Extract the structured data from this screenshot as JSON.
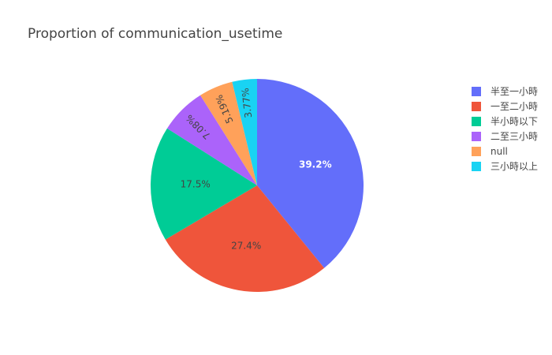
{
  "chart_data": {
    "type": "pie",
    "title": "Proportion of communication_usetime",
    "labels": [
      "半至一小時",
      "一至二小時",
      "半小時以下",
      "二至三小時",
      "null",
      "三小時以上"
    ],
    "percent_labels": [
      "39.2%",
      "27.4%",
      "17.5%",
      "7.08%",
      "5.19%",
      "3.77%"
    ],
    "values": [
      39.2,
      27.4,
      17.5,
      7.08,
      5.19,
      3.77
    ],
    "colors": [
      "#636efa",
      "#EF553B",
      "#00cc96",
      "#ab63fa",
      "#FFA15A",
      "#19d3f3"
    ],
    "label_colors": [
      "#ffffff",
      "#444444",
      "#444444",
      "#444444",
      "#444444",
      "#444444"
    ],
    "direction": "clockwise",
    "start_angle": "top",
    "legend_position": "right"
  }
}
